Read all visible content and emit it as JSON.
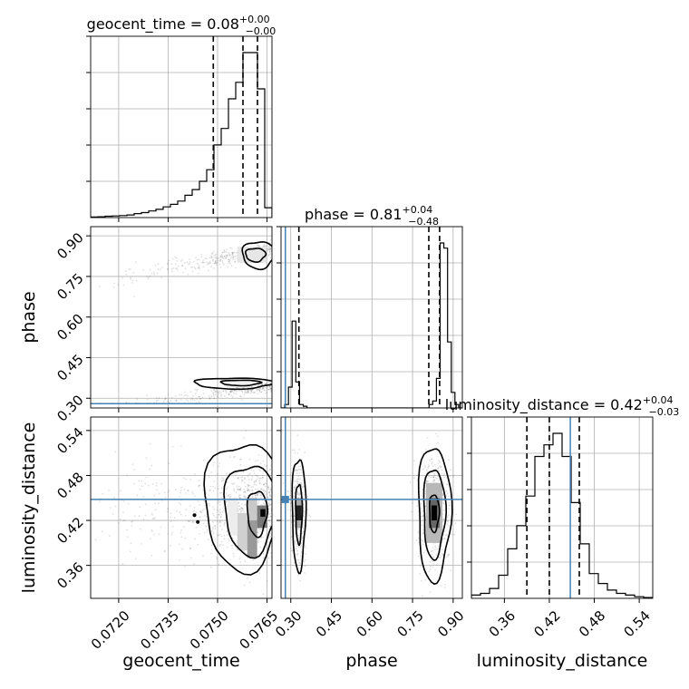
{
  "chart_data": {
    "type": "corner",
    "parameters": [
      "geocent_time",
      "phase",
      "luminosity_distance"
    ],
    "titles": {
      "geocent_time": {
        "name": "geocent_time",
        "value": "0.08",
        "plus": "+0.00",
        "minus": "−0.00"
      },
      "phase": {
        "name": "phase",
        "value": "0.81",
        "plus": "+0.04",
        "minus": "−0.48"
      },
      "luminosity_distance": {
        "name": "luminosity_distance",
        "value": "0.42",
        "plus": "+0.04",
        "minus": "−0.03"
      }
    },
    "axis_labels": {
      "geocent_time": "geocent_time",
      "phase": "phase",
      "luminosity_distance": "luminosity_distance"
    },
    "ranges": {
      "geocent_time": [
        0.07115,
        0.07665
      ],
      "phase": [
        0.264,
        0.934
      ],
      "luminosity_distance": [
        0.316,
        0.558
      ]
    },
    "ticks": {
      "geocent_time": [
        "0.0720",
        "0.0735",
        "0.0750",
        "0.0765"
      ],
      "phase": [
        "0.30",
        "0.45",
        "0.60",
        "0.75",
        "0.90"
      ],
      "luminosity_distance": [
        "0.36",
        "0.42",
        "0.48",
        "0.54"
      ]
    },
    "truths": {
      "geocent_time": null,
      "phase": 0.28,
      "luminosity_distance": 0.448
    },
    "quantiles": {
      "geocent_time": [
        0.07487,
        0.07577,
        0.07621
      ],
      "phase": [
        0.33,
        0.81,
        0.85
      ],
      "luminosity_distance": [
        0.39,
        0.42,
        0.46
      ]
    },
    "histograms": {
      "geocent_time": {
        "edges_range": [
          0.07115,
          0.07665
        ],
        "counts": [
          0.004,
          0.005,
          0.008,
          0.01,
          0.012,
          0.016,
          0.024,
          0.03,
          0.04,
          0.05,
          0.065,
          0.08,
          0.1,
          0.135,
          0.17,
          0.22,
          0.29,
          0.44,
          0.54,
          0.72,
          0.82,
          1.0,
          1.0,
          0.78,
          0.06
        ]
      },
      "phase": {
        "edges_range": [
          0.264,
          0.934
        ],
        "counts": [
          0,
          0.02,
          0.12,
          0.5,
          0.15,
          0.02,
          0.01,
          0,
          0,
          0,
          0,
          0,
          0,
          0,
          0,
          0,
          0,
          0,
          0,
          0,
          0,
          0,
          0,
          0,
          0,
          0,
          0,
          0,
          0,
          0,
          0,
          0,
          0,
          0,
          0,
          0,
          0,
          0,
          0,
          0,
          0.02,
          0.04,
          0.17,
          0.95,
          0.92,
          0.38,
          0.09,
          0.02,
          0
        ]
      },
      "luminosity_distance": {
        "edges_range": [
          0.316,
          0.558
        ],
        "counts": [
          0.02,
          0.03,
          0.06,
          0.14,
          0.3,
          0.44,
          0.62,
          0.86,
          0.93,
          1.0,
          0.86,
          0.58,
          0.33,
          0.15,
          0.09,
          0.05,
          0.03,
          0.02,
          0.01,
          0.005
        ]
      }
    },
    "grid": true
  }
}
